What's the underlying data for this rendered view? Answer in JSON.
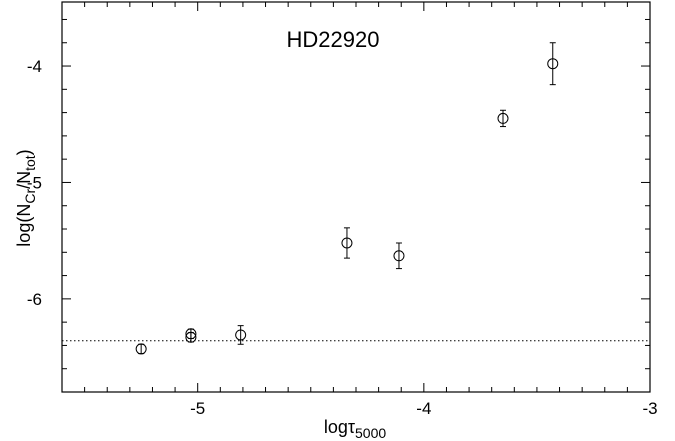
{
  "chart_data": {
    "type": "scatter",
    "title": "HD22920",
    "xlabel": {
      "main": "log",
      "tau": "τ",
      "sub": "5000"
    },
    "ylabel": {
      "pre": "log(N",
      "sub1": "Cr",
      "mid": "/N",
      "sub2": "tot",
      "post": ")"
    },
    "xlim": [
      -5.6,
      -3.0
    ],
    "ylim": [
      -6.8,
      -3.45
    ],
    "x_ticks": [
      {
        "value": -5,
        "label": "-5"
      },
      {
        "value": -4,
        "label": "-4"
      },
      {
        "value": -3,
        "label": "-3"
      }
    ],
    "y_ticks": [
      {
        "value": -4,
        "label": "-4"
      },
      {
        "value": -5,
        "label": "-5"
      },
      {
        "value": -6,
        "label": "-6"
      }
    ],
    "x_minor_step": 0.1,
    "y_minor_step": 0.2,
    "reference_line": {
      "y": -6.36,
      "style": "dotted"
    },
    "grid": false,
    "points": [
      {
        "x": -5.25,
        "y": -6.43,
        "err": 0.04
      },
      {
        "x": -5.03,
        "y": -6.3,
        "err": 0.04
      },
      {
        "x": -5.03,
        "y": -6.33,
        "err": 0.04
      },
      {
        "x": -4.81,
        "y": -6.31,
        "err": 0.08
      },
      {
        "x": -4.34,
        "y": -5.52,
        "err": 0.13
      },
      {
        "x": -4.11,
        "y": -5.63,
        "err": 0.11
      },
      {
        "x": -3.65,
        "y": -4.45,
        "err": 0.07
      },
      {
        "x": -3.43,
        "y": -3.98,
        "err": 0.18
      }
    ]
  }
}
